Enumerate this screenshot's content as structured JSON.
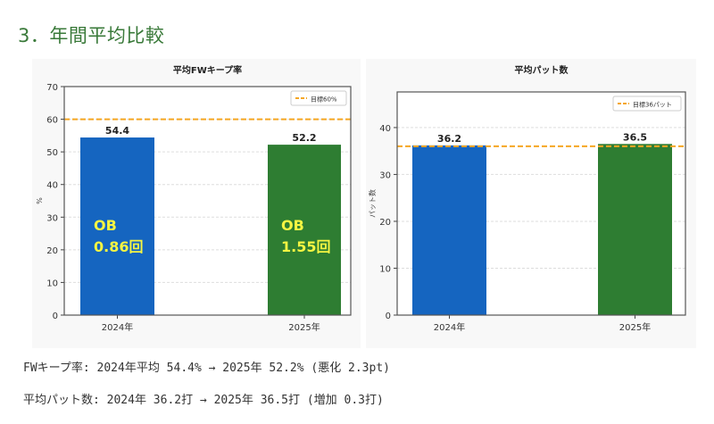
{
  "section": {
    "title": "3．年間平均比較"
  },
  "colors": {
    "bar_2024": "#1565c0",
    "bar_2025": "#2e7d32",
    "target_line": "#f5a623",
    "annotation": "#f5f542",
    "title_green": "#3a7a3a"
  },
  "chart_data": [
    {
      "type": "bar",
      "title": "平均FWキープ率",
      "xlabel": "",
      "ylabel": "%",
      "ylim": [
        0,
        70
      ],
      "yticks": [
        0,
        10,
        20,
        30,
        40,
        50,
        60,
        70
      ],
      "categories": [
        "2024年",
        "2025年"
      ],
      "values": [
        54.4,
        52.2
      ],
      "data_labels": [
        "54.4",
        "52.2"
      ],
      "bar_annotations": [
        {
          "line1": "OB",
          "line2": "0.86回"
        },
        {
          "line1": "OB",
          "line2": "1.55回"
        }
      ],
      "target": {
        "value": 60,
        "label": "目標60%"
      },
      "grid": true,
      "legend_position": "top-right"
    },
    {
      "type": "bar",
      "title": "平均パット数",
      "xlabel": "",
      "ylabel": "パット数",
      "ylim": [
        0,
        47.6
      ],
      "yticks": [
        0,
        10,
        20,
        30,
        40
      ],
      "categories": [
        "2024年",
        "2025年"
      ],
      "values": [
        36.2,
        36.5
      ],
      "data_labels": [
        "36.2",
        "36.5"
      ],
      "target": {
        "value": 36,
        "label": "目標36パット"
      },
      "grid": true,
      "legend_position": "top-right"
    }
  ],
  "summary": {
    "line1": "FWキープ率: 2024年平均 54.4% → 2025年 52.2% (悪化 2.3pt)",
    "line2": "平均パット数: 2024年 36.2打 → 2025年 36.5打 (増加 0.3打)"
  }
}
